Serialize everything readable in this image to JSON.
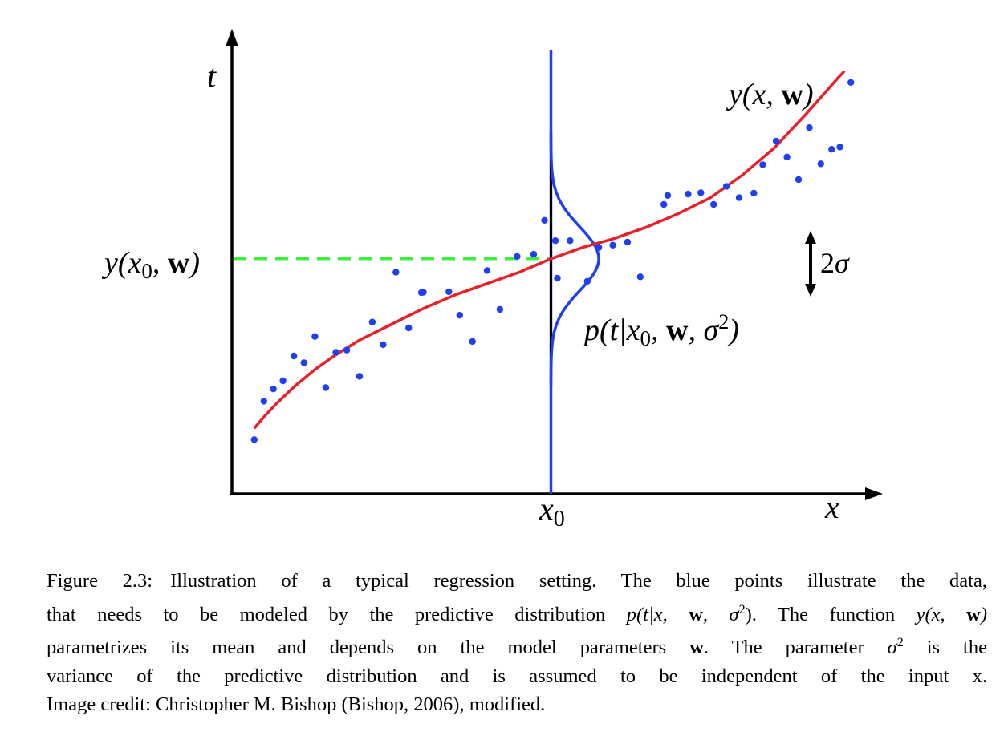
{
  "figure": {
    "axis_labels": {
      "t": "t",
      "x": "x",
      "x0_base": "x",
      "x0_sub": "0"
    },
    "annotations": {
      "curve_label": {
        "pre": "y(x, ",
        "bold": "w",
        "post": ")"
      },
      "y_x0_label": {
        "pre": "y(x",
        "sub": "0",
        "mid": ", ",
        "bold": "w",
        "post": ")"
      },
      "pdf_label": {
        "pre": "p(t|x",
        "sub": "0",
        "mid": ", ",
        "bold": "w",
        "mid2": ", σ",
        "sup": "2",
        "post": ")"
      },
      "sigma_label": {
        "coef": "2",
        "sym": "σ"
      }
    },
    "colors": {
      "axes": "#000000",
      "curve": "#e8202a",
      "points": "#1f3ff0",
      "gaussian": "#1f3ff0",
      "dashed": "#3cf03c"
    }
  },
  "chart_data": {
    "type": "scatter",
    "xlim": [
      0,
      1
    ],
    "ylim": [
      0,
      1
    ],
    "x0": 0.5,
    "y_at_x0": 0.52,
    "curve": {
      "x": [
        0.035,
        0.05,
        0.07,
        0.1,
        0.13,
        0.16,
        0.2,
        0.25,
        0.3,
        0.35,
        0.4,
        0.45,
        0.5,
        0.55,
        0.6,
        0.65,
        0.7,
        0.75,
        0.8,
        0.85,
        0.9,
        0.95,
        0.96
      ],
      "y": [
        0.145,
        0.17,
        0.2,
        0.24,
        0.275,
        0.305,
        0.34,
        0.375,
        0.41,
        0.44,
        0.465,
        0.49,
        0.52,
        0.545,
        0.565,
        0.59,
        0.62,
        0.655,
        0.705,
        0.765,
        0.84,
        0.92,
        0.935
      ]
    },
    "points": {
      "x": [
        0.035,
        0.05,
        0.065,
        0.08,
        0.097,
        0.113,
        0.13,
        0.147,
        0.163,
        0.18,
        0.2,
        0.22,
        0.237,
        0.257,
        0.277,
        0.297,
        0.3,
        0.34,
        0.357,
        0.377,
        0.4,
        0.42,
        0.447,
        0.473,
        0.49,
        0.507,
        0.51,
        0.53,
        0.557,
        0.575,
        0.597,
        0.62,
        0.64,
        0.677,
        0.683,
        0.715,
        0.735,
        0.755,
        0.775,
        0.795,
        0.818,
        0.832,
        0.853,
        0.87,
        0.888,
        0.905,
        0.923,
        0.94,
        0.953,
        0.97
      ],
      "y": [
        0.12,
        0.205,
        0.232,
        0.25,
        0.305,
        0.29,
        0.348,
        0.235,
        0.313,
        0.318,
        0.26,
        0.38,
        0.33,
        0.49,
        0.367,
        0.445,
        0.446,
        0.447,
        0.395,
        0.337,
        0.494,
        0.408,
        0.525,
        0.53,
        0.605,
        0.56,
        0.477,
        0.56,
        0.47,
        0.545,
        0.55,
        0.557,
        0.48,
        0.64,
        0.66,
        0.663,
        0.666,
        0.64,
        0.68,
        0.655,
        0.665,
        0.728,
        0.78,
        0.745,
        0.695,
        0.81,
        0.73,
        0.762,
        0.767,
        0.91
      ]
    },
    "predictive_distribution": {
      "center": 0.52,
      "sigma": 0.07,
      "peak_height_x": 0.075
    },
    "sigma_marker": "2σ",
    "title": "",
    "xlabel": "x",
    "ylabel": "t",
    "grid": false,
    "legend": "none"
  },
  "caption": {
    "lines": [
      [
        {
          "t": "Figure 2.3:",
          "cls": "label"
        },
        {
          "t": "Illustration of a typical regression setting. The blue points illustrate the data,"
        }
      ],
      [
        {
          "t": "that needs to be modeled by the predictive distribution "
        },
        {
          "t": "p(t|x, ",
          "cls": "math"
        },
        {
          "t": "w",
          "cls": "bold"
        },
        {
          "t": ", σ",
          "cls": "math"
        },
        {
          "t": "2",
          "cls": "sup"
        },
        {
          "t": ").  The function "
        },
        {
          "t": "y(x, ",
          "cls": "math"
        },
        {
          "t": "w",
          "cls": "bold"
        },
        {
          "t": ")",
          "cls": "math"
        }
      ],
      [
        {
          "t": "parametrizes its mean and depends on the model parameters "
        },
        {
          "t": "w",
          "cls": "bold"
        },
        {
          "t": ".  The parameter "
        },
        {
          "t": "σ",
          "cls": "math"
        },
        {
          "t": "2",
          "cls": "sup"
        },
        {
          "t": " is the"
        }
      ],
      [
        {
          "t": "variance of the predictive distribution and is assumed to be independent of the input x."
        }
      ],
      [
        {
          "t": "Image credit: Christopher M. Bishop (Bishop, 2006), modified."
        }
      ]
    ]
  }
}
